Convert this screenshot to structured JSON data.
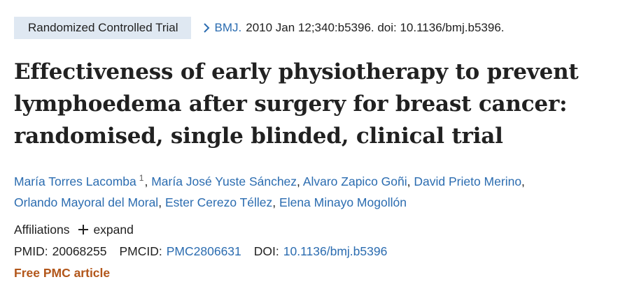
{
  "header": {
    "publication_type": "Randomized Controlled Trial",
    "journal": "BMJ.",
    "citation_details": "2010 Jan 12;340:b5396. doi: 10.1136/bmj.b5396."
  },
  "article": {
    "title": "Effectiveness of early physiotherapy to prevent lymphoedema after surgery for breast cancer: randomised, single blinded, clinical trial"
  },
  "authors": [
    {
      "name": "María Torres Lacomba",
      "affiliation_ref": "1"
    },
    {
      "name": "María José Yuste Sánchez"
    },
    {
      "name": "Alvaro Zapico Goñi"
    },
    {
      "name": "David Prieto Merino"
    },
    {
      "name": "Orlando Mayoral del Moral"
    },
    {
      "name": "Ester Cerezo Téllez"
    },
    {
      "name": "Elena Minayo Mogollón"
    }
  ],
  "affiliations": {
    "label": "Affiliations",
    "expand_label": "expand"
  },
  "identifiers": {
    "pmid_label": "PMID:",
    "pmid_value": "20068255",
    "pmcid_label": "PMCID:",
    "pmcid_value": "PMC2806631",
    "doi_label": "DOI:",
    "doi_value": "10.1136/bmj.b5396"
  },
  "free_pmc_label": "Free PMC article",
  "colors": {
    "link": "#2b6cb0",
    "pub_type_bg": "#dfe8f2",
    "free_pmc": "#b2561a",
    "text": "#212121"
  }
}
